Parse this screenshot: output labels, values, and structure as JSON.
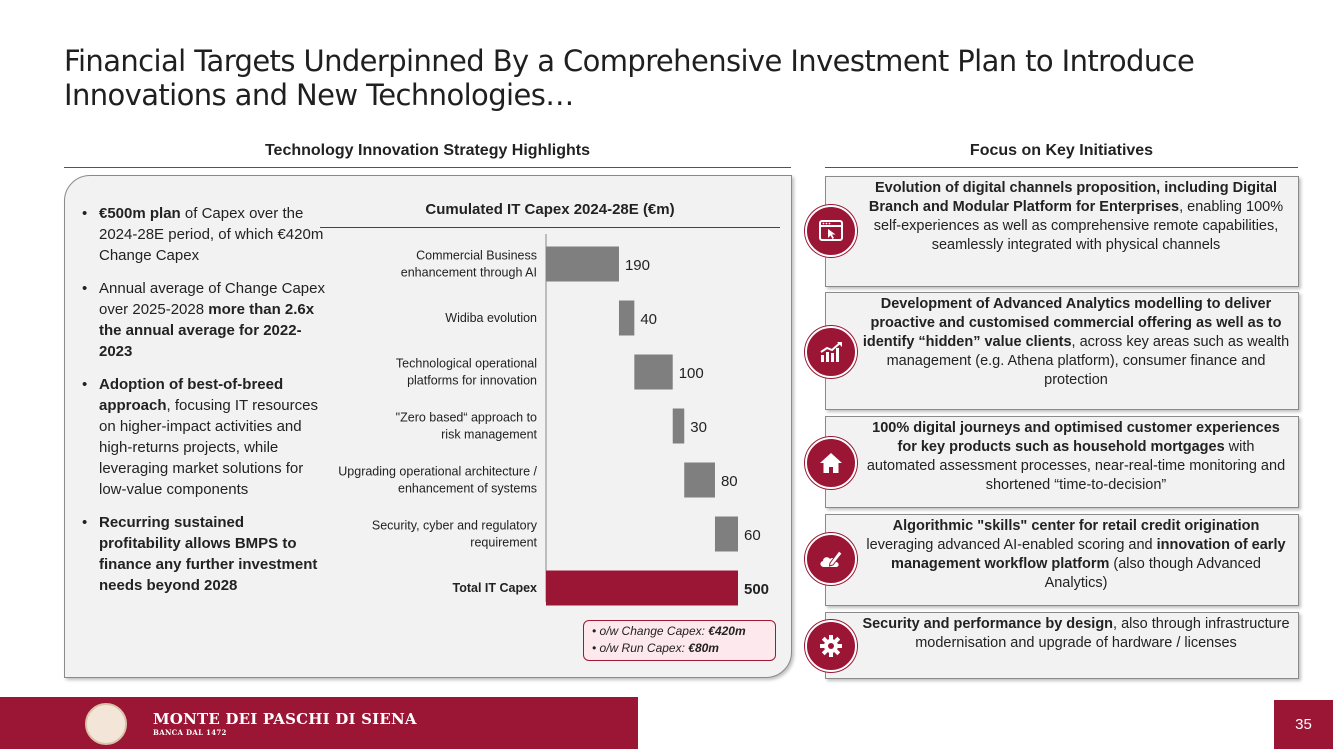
{
  "title": "Financial Targets Underpinned By a Comprehensive Investment Plan to Introduce Innovations and New Technologies…",
  "left_section": {
    "heading": "Technology Innovation Strategy Highlights",
    "bullets": [
      {
        "bold": "€500m plan",
        "text": " of Capex over the 2024-28E period, of which €420m Change Capex"
      },
      {
        "text_a": "Annual average of Change Capex over 2025-2028 ",
        "bold": "more than 2.6x the annual average for 2022-2023"
      },
      {
        "bold": "Adoption of best-of-breed approach",
        "text": ", focusing IT resources on higher-impact activities and high-returns projects, while leveraging market solutions for low-value components"
      },
      {
        "bold": "Recurring sustained profitability allows BMPS to finance any further investment needs beyond 2028"
      }
    ]
  },
  "chart_data": {
    "type": "bar",
    "orientation": "horizontal-waterfall",
    "title": "Cumulated IT Capex 2024-28E (€m)",
    "categories": [
      [
        "Commercial Business",
        "enhancement through AI"
      ],
      [
        "Widiba evolution"
      ],
      [
        "Technological operational",
        "platforms for innovation"
      ],
      [
        "\"Zero based“ approach to",
        "risk management"
      ],
      [
        "Upgrading operational architecture /",
        "enhancement of systems"
      ],
      [
        "Security, cyber and regulatory",
        "requirement"
      ],
      [
        "Total IT Capex"
      ]
    ],
    "values": [
      190,
      40,
      100,
      30,
      80,
      60,
      500
    ],
    "labels": [
      "190",
      "40",
      "100",
      "30",
      "80",
      "60",
      "500"
    ],
    "total_index": 6,
    "xlim": [
      0,
      500
    ],
    "colors": {
      "step": "#7f7f7f",
      "total": "#9b1535"
    }
  },
  "callout": {
    "line1_text": "o/w Change Capex: ",
    "line1_value": "€420m",
    "line2_text": "o/w Run Capex: ",
    "line2_value": "€80m"
  },
  "right_section": {
    "heading": "Focus on Key Initiatives",
    "cards": [
      {
        "icon": "browser-click-icon",
        "bold": "Evolution of digital channels proposition, including Digital Branch and Modular Platform for Enterprises",
        "text": ", enabling 100% self-experiences as well as comprehensive remote capabilities, seamlessly integrated with physical channels"
      },
      {
        "icon": "analytics-chart-icon",
        "bold": "Development of Advanced Analytics modelling to deliver proactive and customised commercial offering as well as to identify “hidden” value clients",
        "text": ", across key areas such as wealth management (e.g. Athena platform), consumer finance and protection"
      },
      {
        "icon": "house-icon",
        "bold": "100% digital journeys and optimised customer experiences for key products such as household mortgages",
        "text": " with automated assessment processes, near-real-time monitoring and shortened “time-to-decision”"
      },
      {
        "icon": "cloud-pen-icon",
        "bold": "Algorithmic \"skills\" center for retail credit origination",
        "text": " leveraging advanced AI-enabled scoring and ",
        "bold2": "innovation of early management workflow platform",
        "text2": " (also though Advanced Analytics)"
      },
      {
        "icon": "gear-icon",
        "bold": "Security and performance by design",
        "text": ", also through infrastructure modernisation and upgrade of hardware / licenses"
      }
    ]
  },
  "footer": {
    "brand": "MONTE DEI PASCHI DI SIENA",
    "brand_sub": "BANCA DAL 1472",
    "page_number": "35",
    "logo_icon": "bank-seal-icon"
  }
}
